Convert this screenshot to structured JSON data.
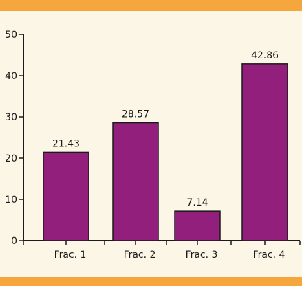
{
  "chart_data": {
    "type": "bar",
    "categories": [
      "Frac. 1",
      "Frac. 2",
      "Frac. 3",
      "Frac. 4"
    ],
    "values": [
      21.43,
      28.57,
      7.14,
      42.86
    ],
    "data_labels": [
      "21.43",
      "28.57",
      "7.14",
      "42.86"
    ],
    "ylim": [
      0,
      50
    ],
    "yticks": [
      0,
      10,
      20,
      30,
      40,
      50
    ],
    "grid": false,
    "legend": "none",
    "colors": {
      "bar_fill": "#931f7d",
      "bar_stroke": "#1a1a1a",
      "axis": "#1a1a1a",
      "background": "#fcf6e6",
      "band": "#f5a73e"
    }
  }
}
